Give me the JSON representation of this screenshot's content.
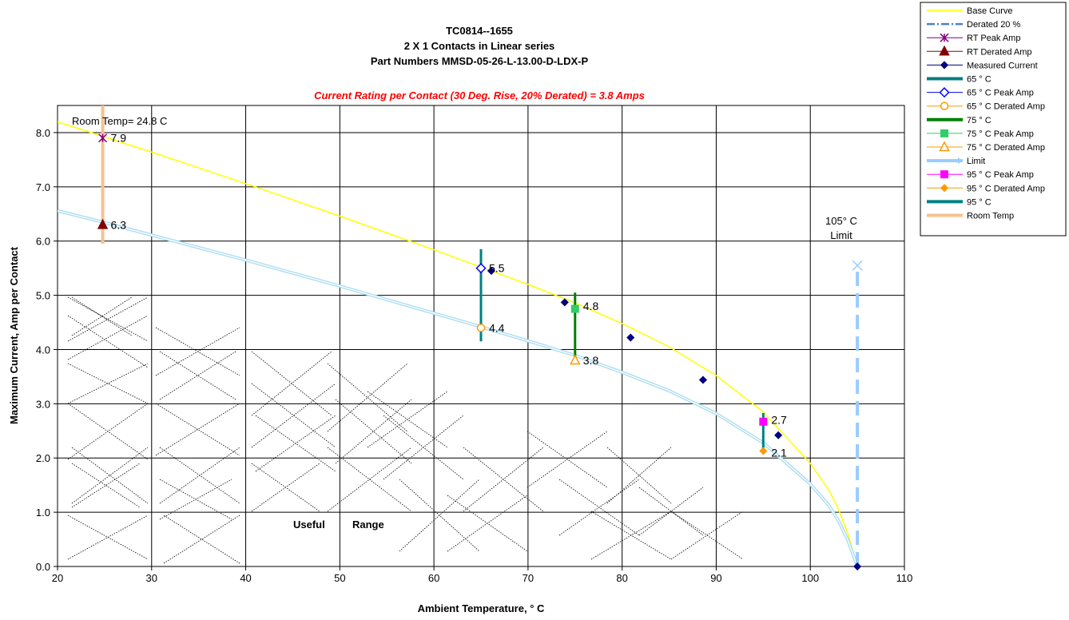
{
  "chart_data": {
    "type": "line",
    "title_lines": [
      "TC0814--1655",
      "2 X 1 Contacts in Linear series",
      "Part Numbers MMSD-05-26-L-13.00-D-LDX-P"
    ],
    "subtitle": "Current Rating per Contact (30 Deg. Rise, 20% Derated)  = 3.8 Amps",
    "xlabel": "Ambient Temperature,  ° C",
    "ylabel": "Maximum Current, Amp per Contact",
    "xlim": [
      20,
      110
    ],
    "ylim": [
      0,
      8.5
    ],
    "xticks": [
      "20",
      "30",
      "40",
      "50",
      "60",
      "70",
      "80",
      "90",
      "100",
      "110"
    ],
    "yticks": [
      "0.0",
      "1.0",
      "2.0",
      "3.0",
      "4.0",
      "5.0",
      "6.0",
      "7.0",
      "8.0"
    ],
    "grid": true,
    "legend_position": "outside-top-right",
    "annotations": {
      "room_temp": "Room Temp= 24.8 C",
      "limit_line1": "105° C",
      "limit_line2": "Limit",
      "useful": "Useful",
      "range": "Range"
    },
    "data_labels": [
      {
        "x": 24.8,
        "y": 7.9,
        "text": "7.9"
      },
      {
        "x": 24.8,
        "y": 6.3,
        "text": "6.3"
      },
      {
        "x": 65,
        "y": 5.5,
        "text": "5.5"
      },
      {
        "x": 65,
        "y": 4.4,
        "text": "4.4"
      },
      {
        "x": 75,
        "y": 4.8,
        "text": "4.8"
      },
      {
        "x": 75,
        "y": 3.8,
        "text": "3.8"
      },
      {
        "x": 95,
        "y": 2.7,
        "text": "2.7"
      },
      {
        "x": 95,
        "y": 2.1,
        "text": "2.1"
      }
    ],
    "series": [
      {
        "name": "Base Curve",
        "color": "#ffff00",
        "style": "line",
        "x": [
          20,
          25,
          30,
          35,
          40,
          45,
          50,
          55,
          60,
          65,
          70,
          75,
          80,
          85,
          90,
          95,
          100,
          102,
          103,
          104,
          105
        ],
        "y": [
          8.2,
          7.92,
          7.64,
          7.35,
          7.06,
          6.76,
          6.46,
          6.15,
          5.84,
          5.52,
          5.2,
          4.86,
          4.48,
          4.05,
          3.52,
          2.85,
          1.9,
          1.4,
          1.05,
          0.6,
          0.0
        ]
      },
      {
        "name": "Derated 20 %",
        "color": "#4f81bd",
        "style": "dash-dot",
        "x": [
          20,
          25,
          30,
          35,
          40,
          45,
          50,
          55,
          60,
          65,
          70,
          75,
          80,
          85,
          90,
          95,
          100,
          102,
          103,
          104,
          105
        ],
        "y": [
          6.56,
          6.34,
          6.11,
          5.88,
          5.65,
          5.41,
          5.17,
          4.92,
          4.67,
          4.42,
          4.16,
          3.89,
          3.58,
          3.24,
          2.82,
          2.28,
          1.52,
          1.12,
          0.84,
          0.48,
          0.0
        ]
      },
      {
        "name": "RT Peak Amp",
        "color": "#800080",
        "style": "marker-star",
        "x": [
          24.8
        ],
        "y": [
          7.9
        ]
      },
      {
        "name": "RT Derated Amp",
        "color": "#800000",
        "style": "marker-triangle",
        "x": [
          24.8
        ],
        "y": [
          6.3
        ]
      },
      {
        "name": "Measured Current",
        "color": "#000080",
        "style": "marker-diamond",
        "x": [
          66.1,
          73.9,
          80.9,
          88.6,
          96.6,
          105
        ],
        "y": [
          5.45,
          4.87,
          4.22,
          3.44,
          2.42,
          0.0
        ]
      },
      {
        "name": "65 ° C",
        "color": "#008080",
        "style": "vline",
        "x": [
          65,
          65
        ],
        "y": [
          4.15,
          5.85
        ]
      },
      {
        "name": "65  ° C Peak Amp",
        "color": "#0000ff",
        "style": "marker-diamond-open",
        "x": [
          65
        ],
        "y": [
          5.5
        ]
      },
      {
        "name": "65  ° C Derated Amp",
        "color": "#ff9900",
        "style": "marker-circle-open",
        "x": [
          65
        ],
        "y": [
          4.4
        ]
      },
      {
        "name": "75  ° C",
        "color": "#008000",
        "style": "vline",
        "x": [
          75,
          75
        ],
        "y": [
          3.8,
          5.05
        ]
      },
      {
        "name": "75  ° C Peak Amp",
        "color": "#33cc66",
        "style": "marker-square",
        "x": [
          75
        ],
        "y": [
          4.75
        ]
      },
      {
        "name": "75  ° C Derated Amp",
        "color": "#ff9900",
        "style": "marker-triangle-open",
        "x": [
          75
        ],
        "y": [
          3.8
        ]
      },
      {
        "name": "Limit",
        "color": "#99ccff",
        "style": "vline-dashed",
        "x": [
          105,
          105
        ],
        "y": [
          0.0,
          5.55
        ]
      },
      {
        "name": "95  ° C Peak Amp",
        "color": "#ff00ff",
        "style": "marker-square",
        "x": [
          95
        ],
        "y": [
          2.67
        ]
      },
      {
        "name": "95  ° C Derated Amp",
        "color": "#ff9900",
        "style": "marker-diamond",
        "x": [
          95
        ],
        "y": [
          2.13
        ]
      },
      {
        "name": "95  ° C",
        "color": "#008080",
        "style": "vline",
        "x": [
          95,
          95
        ],
        "y": [
          2.13,
          2.83
        ]
      },
      {
        "name": "Room Temp",
        "color": "#fac090",
        "style": "vline",
        "x": [
          24.8,
          24.8
        ],
        "y": [
          5.95,
          8.5
        ]
      }
    ]
  }
}
